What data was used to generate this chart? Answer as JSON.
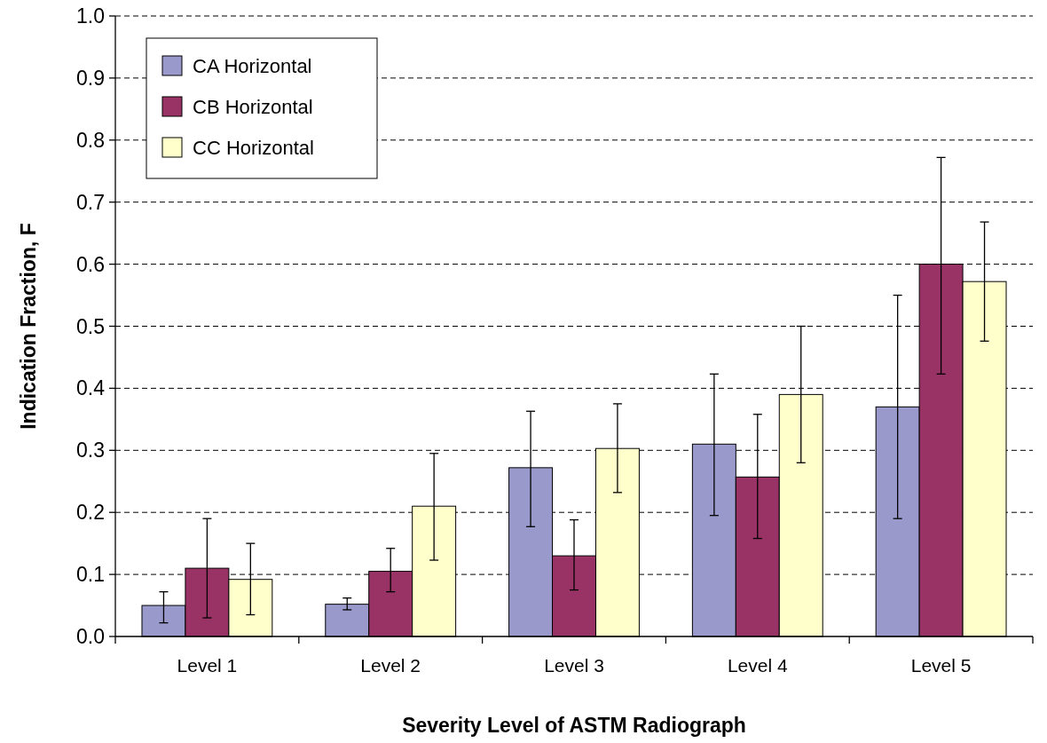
{
  "chart_data": {
    "type": "bar",
    "xlabel": "Severity Level of ASTM Radiograph",
    "ylabel": "Indication Fraction, F",
    "categories": [
      "Level 1",
      "Level 2",
      "Level 3",
      "Level 4",
      "Level 5"
    ],
    "series": [
      {
        "name": "CA Horizontal",
        "color": "#9999cc",
        "values": [
          0.05,
          0.052,
          0.272,
          0.31,
          0.37
        ],
        "errors": [
          [
            0.022,
            0.072
          ],
          [
            0.043,
            0.062
          ],
          [
            0.177,
            0.363
          ],
          [
            0.195,
            0.423
          ],
          [
            0.19,
            0.55
          ]
        ]
      },
      {
        "name": "CB Horizontal",
        "color": "#993366",
        "values": [
          0.11,
          0.105,
          0.13,
          0.257,
          0.6
        ],
        "errors": [
          [
            0.03,
            0.19
          ],
          [
            0.072,
            0.142
          ],
          [
            0.075,
            0.188
          ],
          [
            0.158,
            0.358
          ],
          [
            0.423,
            0.772
          ]
        ]
      },
      {
        "name": "CC Horizontal",
        "color": "#ffffcc",
        "values": [
          0.092,
          0.21,
          0.303,
          0.39,
          0.572
        ],
        "errors": [
          [
            0.035,
            0.15
          ],
          [
            0.123,
            0.295
          ],
          [
            0.232,
            0.375
          ],
          [
            0.28,
            0.5
          ],
          [
            0.476,
            0.668
          ]
        ]
      }
    ],
    "ylim": [
      0,
      1
    ],
    "yticks": [
      {
        "value": 0,
        "label": "0.0"
      },
      {
        "value": 0.1,
        "label": "0.1"
      },
      {
        "value": 0.2,
        "label": "0.2"
      },
      {
        "value": 0.3,
        "label": "0.3"
      },
      {
        "value": 0.4,
        "label": "0.4"
      },
      {
        "value": 0.5,
        "label": "0.5"
      },
      {
        "value": 0.6,
        "label": "0.6"
      },
      {
        "value": 0.7,
        "label": "0.7"
      },
      {
        "value": 0.8,
        "label": "0.8"
      },
      {
        "value": 0.9,
        "label": "0.9"
      },
      {
        "value": 1,
        "label": "1.0"
      }
    ],
    "grid": "y",
    "legend": "top left"
  }
}
